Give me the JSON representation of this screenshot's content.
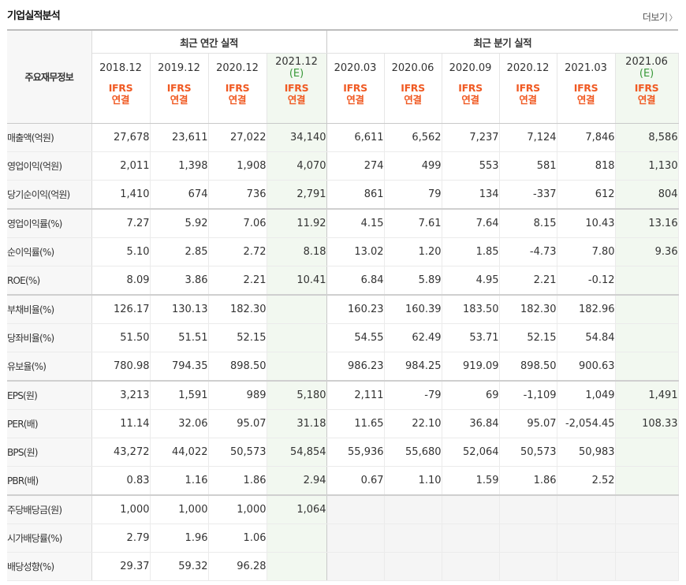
{
  "section": {
    "title": "기업실적분석",
    "more_label": "더보기"
  },
  "header": {
    "corner_label": "주요재무정보",
    "annual_group": "최근 연간 실적",
    "quarter_group": "최근 분기 실적",
    "annual_periods": [
      "2018.12",
      "2019.12",
      "2020.12",
      "2021.12"
    ],
    "annual_estimate_tag": "(E)",
    "quarter_periods": [
      "2020.03",
      "2020.06",
      "2020.09",
      "2020.12",
      "2021.03",
      "2021.06"
    ],
    "quarter_estimate_tag": "(E)",
    "basis_line1": "IFRS",
    "basis_line2": "연결"
  },
  "rows": [
    {
      "label": "매출액(억원)",
      "values": [
        "27,678",
        "23,611",
        "27,022",
        "34,140",
        "6,611",
        "6,562",
        "7,237",
        "7,124",
        "7,846",
        "8,586"
      ]
    },
    {
      "label": "영업이익(억원)",
      "values": [
        "2,011",
        "1,398",
        "1,908",
        "4,070",
        "274",
        "499",
        "553",
        "581",
        "818",
        "1,130"
      ]
    },
    {
      "label": "당기순이익(억원)",
      "values": [
        "1,410",
        "674",
        "736",
        "2,791",
        "861",
        "79",
        "134",
        "-337",
        "612",
        "804"
      ]
    },
    {
      "label": "영업이익률(%)",
      "values": [
        "7.27",
        "5.92",
        "7.06",
        "11.92",
        "4.15",
        "7.61",
        "7.64",
        "8.15",
        "10.43",
        "13.16"
      ]
    },
    {
      "label": "순이익률(%)",
      "values": [
        "5.10",
        "2.85",
        "2.72",
        "8.18",
        "13.02",
        "1.20",
        "1.85",
        "-4.73",
        "7.80",
        "9.36"
      ]
    },
    {
      "label": "ROE(%)",
      "values": [
        "8.09",
        "3.86",
        "2.21",
        "10.41",
        "6.84",
        "5.89",
        "4.95",
        "2.21",
        "-0.12",
        ""
      ]
    },
    {
      "label": "부채비율(%)",
      "values": [
        "126.17",
        "130.13",
        "182.30",
        "",
        "160.23",
        "160.39",
        "183.50",
        "182.30",
        "182.96",
        ""
      ]
    },
    {
      "label": "당좌비율(%)",
      "values": [
        "51.50",
        "51.51",
        "52.15",
        "",
        "54.55",
        "62.49",
        "53.71",
        "52.15",
        "54.84",
        ""
      ]
    },
    {
      "label": "유보율(%)",
      "values": [
        "780.98",
        "794.35",
        "898.50",
        "",
        "986.23",
        "984.25",
        "919.09",
        "898.50",
        "900.63",
        ""
      ]
    },
    {
      "label": "EPS(원)",
      "values": [
        "3,213",
        "1,591",
        "989",
        "5,180",
        "2,111",
        "-79",
        "69",
        "-1,109",
        "1,049",
        "1,491"
      ]
    },
    {
      "label": "PER(배)",
      "values": [
        "11.14",
        "32.06",
        "95.07",
        "31.18",
        "11.65",
        "22.10",
        "36.84",
        "95.07",
        "-2,054.45",
        "108.33"
      ]
    },
    {
      "label": "BPS(원)",
      "values": [
        "43,272",
        "44,022",
        "50,573",
        "54,854",
        "55,936",
        "55,680",
        "52,064",
        "50,573",
        "50,983",
        ""
      ]
    },
    {
      "label": "PBR(배)",
      "values": [
        "0.83",
        "1.16",
        "1.86",
        "2.94",
        "0.67",
        "1.10",
        "1.59",
        "1.86",
        "2.52",
        ""
      ]
    },
    {
      "label": "주당배당금(원)",
      "values": [
        "1,000",
        "1,000",
        "1,000",
        "1,064",
        "",
        "",
        "",
        "",
        "",
        ""
      ]
    },
    {
      "label": "시가배당률(%)",
      "values": [
        "2.79",
        "1.96",
        "1.06",
        "",
        "",
        "",
        "",
        "",
        "",
        ""
      ]
    },
    {
      "label": "배당성향(%)",
      "values": [
        "29.37",
        "59.32",
        "96.28",
        "",
        "",
        "",
        "",
        "",
        "",
        ""
      ]
    }
  ],
  "colors": {
    "basis_text": "#f05a23",
    "estimate_tag": "#3a9a3a",
    "negative": "#e3241a",
    "estimate_bg": "#f2f8f0"
  }
}
